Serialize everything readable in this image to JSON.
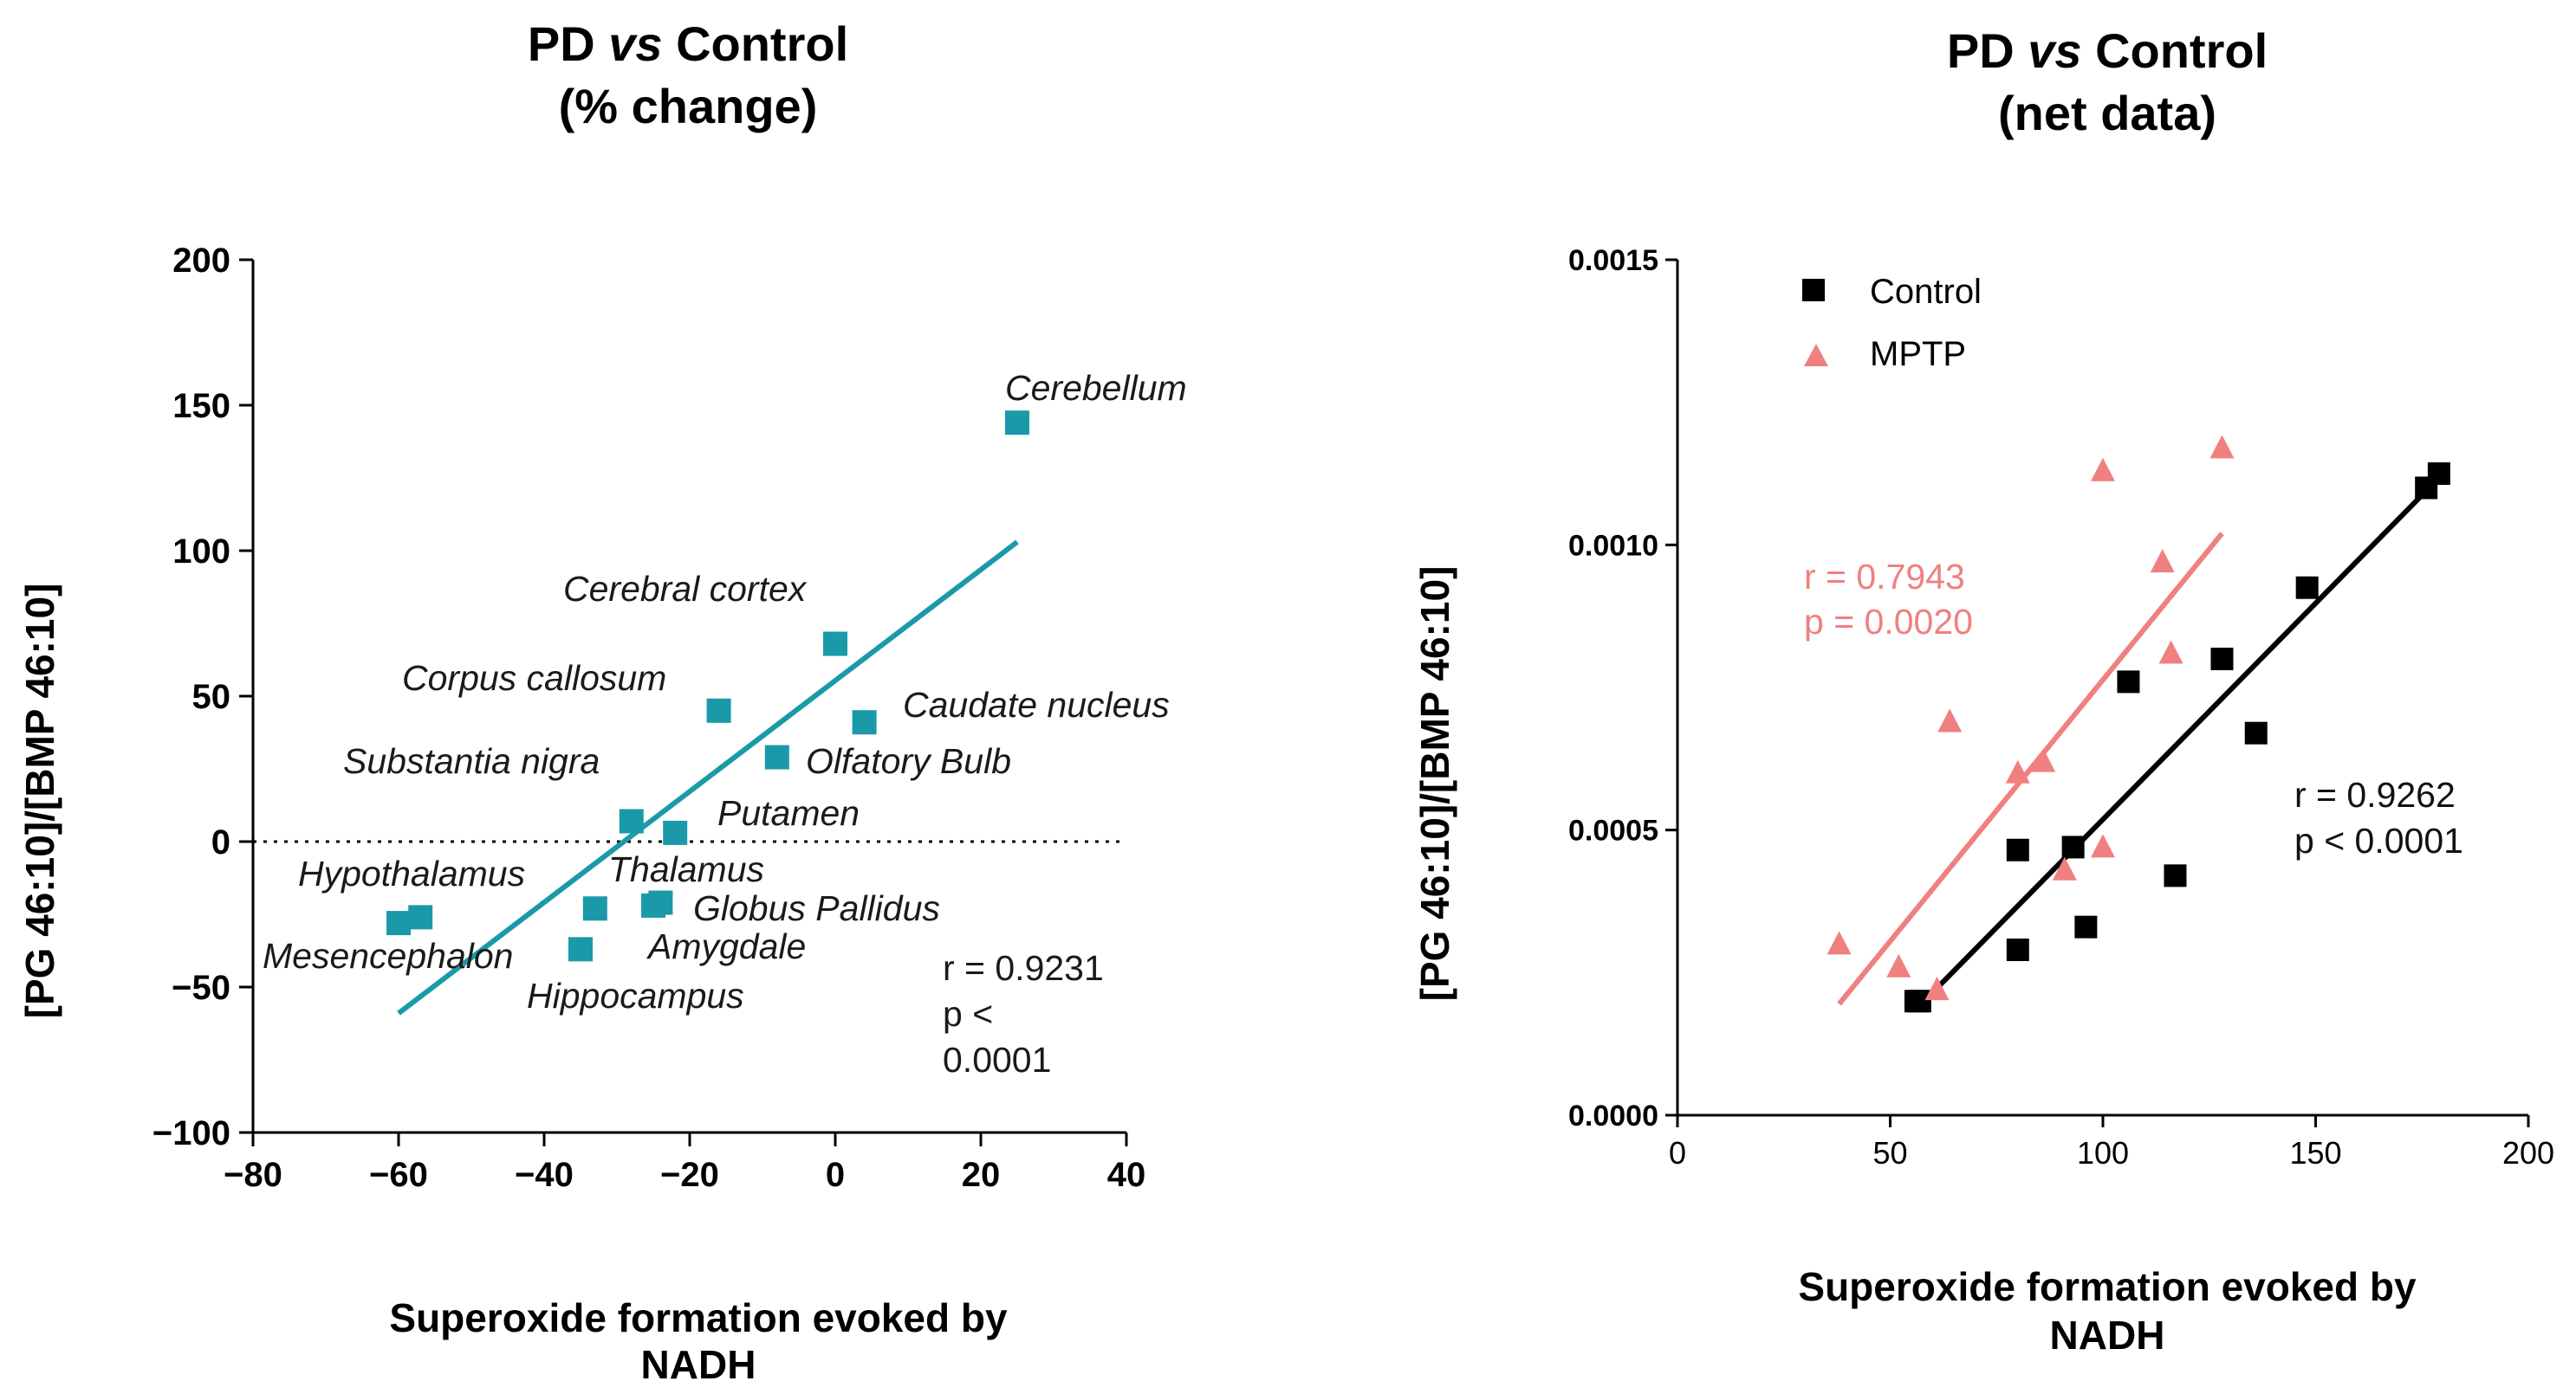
{
  "chart_data": [
    {
      "type": "scatter",
      "title_line1_a": "PD ",
      "title_line1_b": "vs",
      "title_line1_c": " Control",
      "title_line2": "(% change)",
      "xlabel_line1": "Superoxide formation evoked by",
      "xlabel_line2": "NADH",
      "ylabel": "[PG 46:10]/[BMP 46:10]",
      "xlim": [
        -80,
        40
      ],
      "ylim": [
        -100,
        200
      ],
      "x_ticks": [
        "−80",
        "−60",
        "−40",
        "−20",
        "0",
        "20",
        "40"
      ],
      "y_ticks": [
        "200",
        "150",
        "100",
        "50",
        "0",
        "−50",
        "−100"
      ],
      "zero_reference_line": true,
      "marker": "square",
      "color": "#1a9aa8",
      "points": [
        {
          "x": 25,
          "y": 144,
          "label": "Cerebellum"
        },
        {
          "x": 0,
          "y": 68,
          "label": "Cerebral cortex"
        },
        {
          "x": -16,
          "y": 45,
          "label": "Corpus callosum"
        },
        {
          "x": 4,
          "y": 41,
          "label": "Caudate nucleus"
        },
        {
          "x": -8,
          "y": 29,
          "label": "Olfatory Bulb"
        },
        {
          "x": -28,
          "y": 7,
          "label": "Substantia nigra"
        },
        {
          "x": -22,
          "y": 3,
          "label": "Putamen"
        },
        {
          "x": -33,
          "y": -23,
          "label": "Thalamus"
        },
        {
          "x": -25,
          "y": -22,
          "label": "Globus Pallidus"
        },
        {
          "x": -24,
          "y": -21,
          "label": ""
        },
        {
          "x": -35,
          "y": -37,
          "label": "Amygdale"
        },
        {
          "x": -57,
          "y": -26,
          "label": "Hypothalamus"
        },
        {
          "x": -60,
          "y": -28,
          "label": "Mesencephalon"
        }
      ],
      "extra_labels": [
        "Hippocampus"
      ],
      "fit_line": {
        "x1": -60,
        "y1": -59,
        "x2": 25,
        "y2": 103
      },
      "stats": {
        "r": "r = 0.9231",
        "p_line1": "p <",
        "p_line2": "0.0001"
      }
    },
    {
      "type": "scatter",
      "title_line1_a": "PD ",
      "title_line1_b": "vs",
      "title_line1_c": " Control",
      "title_line2": "(net data)",
      "xlabel_line1": "Superoxide formation evoked by",
      "xlabel_line2": "NADH",
      "ylabel": "[PG 46:10]/[BMP 46:10]",
      "xlim": [
        0,
        200
      ],
      "ylim": [
        0,
        0.0015
      ],
      "x_ticks": [
        "0",
        "50",
        "100",
        "150",
        "200"
      ],
      "y_ticks": [
        "0.0015",
        "0.0010",
        "0.0005",
        "0.0000"
      ],
      "legend_placement": "top-left",
      "series": [
        {
          "name": "Control",
          "marker": "square",
          "color": "#000000",
          "points": [
            [
              56,
              0.0002
            ],
            [
              57,
              0.0002
            ],
            [
              80,
              0.000465
            ],
            [
              80,
              0.00029
            ],
            [
              93,
              0.00047
            ],
            [
              96,
              0.00033
            ],
            [
              106,
              0.00076
            ],
            [
              117,
              0.00042
            ],
            [
              128,
              0.0008
            ],
            [
              136,
              0.00067
            ],
            [
              148,
              0.000925
            ],
            [
              176,
              0.0011
            ],
            [
              179,
              0.001125
            ]
          ],
          "fit_line": {
            "x1": 56,
            "y1": 0.000185,
            "x2": 178,
            "y2": 0.00111
          },
          "stats": {
            "r": "r = 0.9262",
            "p": "p < 0.0001"
          }
        },
        {
          "name": "MPTP",
          "marker": "triangle",
          "color": "#f08080",
          "points": [
            [
              38,
              0.0003
            ],
            [
              52,
              0.00026
            ],
            [
              61,
              0.00022
            ],
            [
              64,
              0.00069
            ],
            [
              80,
              0.0006
            ],
            [
              86,
              0.00062
            ],
            [
              91,
              0.00043
            ],
            [
              100,
              0.00047
            ],
            [
              100,
              0.00113
            ],
            [
              114,
              0.00097
            ],
            [
              116,
              0.00081
            ],
            [
              128,
              0.00117
            ]
          ],
          "fit_line": {
            "x1": 38,
            "y1": 0.000195,
            "x2": 128,
            "y2": 0.00102
          },
          "stats": {
            "r": "r = 0.7943",
            "p": "p = 0.0020"
          }
        }
      ]
    }
  ]
}
